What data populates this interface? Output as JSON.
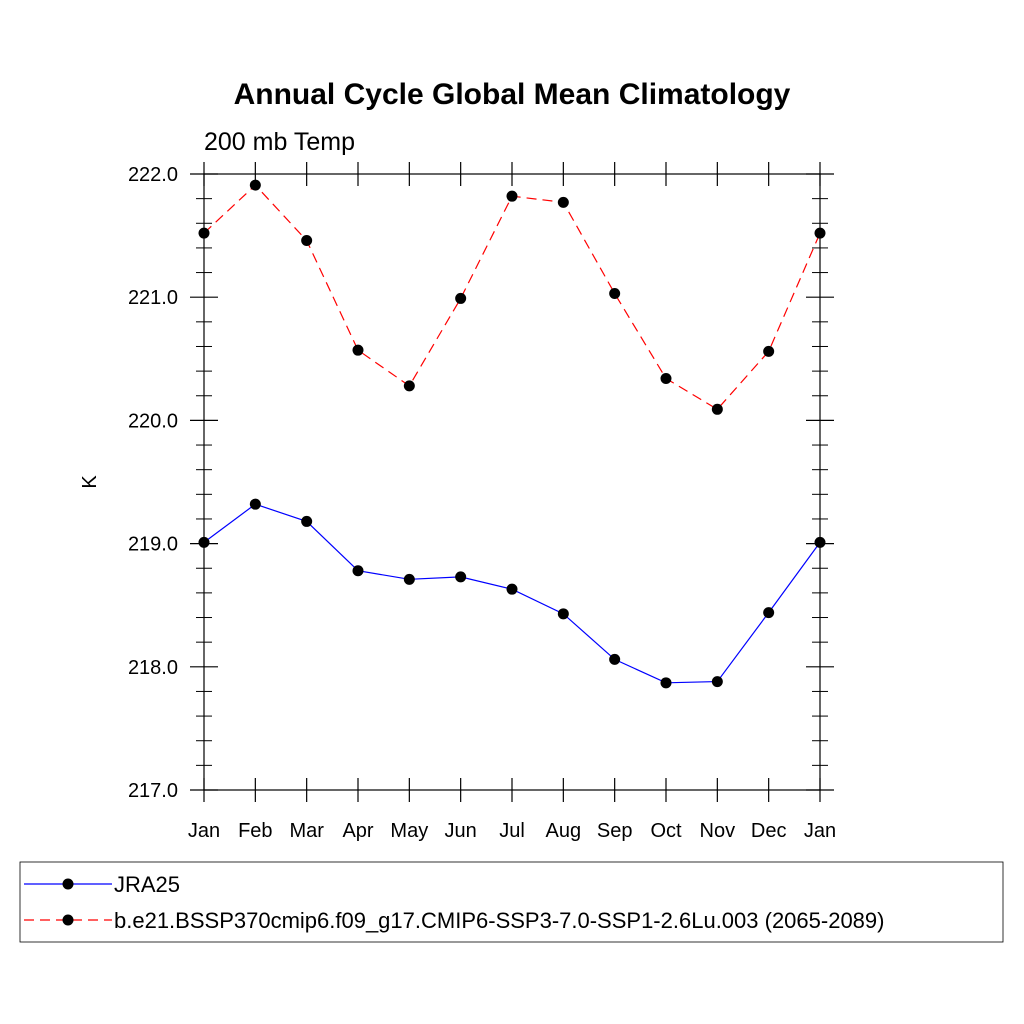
{
  "chart_data": {
    "type": "line",
    "title": "Annual Cycle Global Mean Climatology",
    "subtitle": "200 mb Temp",
    "xlabel": "",
    "ylabel": "K",
    "categories": [
      "Jan",
      "Feb",
      "Mar",
      "Apr",
      "May",
      "Jun",
      "Jul",
      "Aug",
      "Sep",
      "Oct",
      "Nov",
      "Dec",
      "Jan"
    ],
    "ylim": [
      217.0,
      222.0
    ],
    "yticks": [
      "217.0",
      "218.0",
      "219.0",
      "220.0",
      "221.0",
      "222.0"
    ],
    "grid": false,
    "legend_position": "bottom",
    "series": [
      {
        "name": "JRA25",
        "color": "#0000ff",
        "line_style": "solid",
        "marker": "filled-circle",
        "values": [
          219.01,
          219.32,
          219.18,
          218.78,
          218.71,
          218.73,
          218.63,
          218.43,
          218.06,
          217.87,
          217.88,
          218.44,
          219.01
        ]
      },
      {
        "name": "b.e21.BSSP370cmip6.f09_g17.CMIP6-SSP3-7.0-SSP1-2.6Lu.003 (2065-2089)",
        "color": "#ff0000",
        "line_style": "dashed",
        "marker": "filled-circle",
        "values": [
          221.52,
          221.91,
          221.46,
          220.57,
          220.28,
          220.99,
          221.82,
          221.77,
          221.03,
          220.34,
          220.09,
          220.56,
          221.52
        ]
      }
    ]
  }
}
